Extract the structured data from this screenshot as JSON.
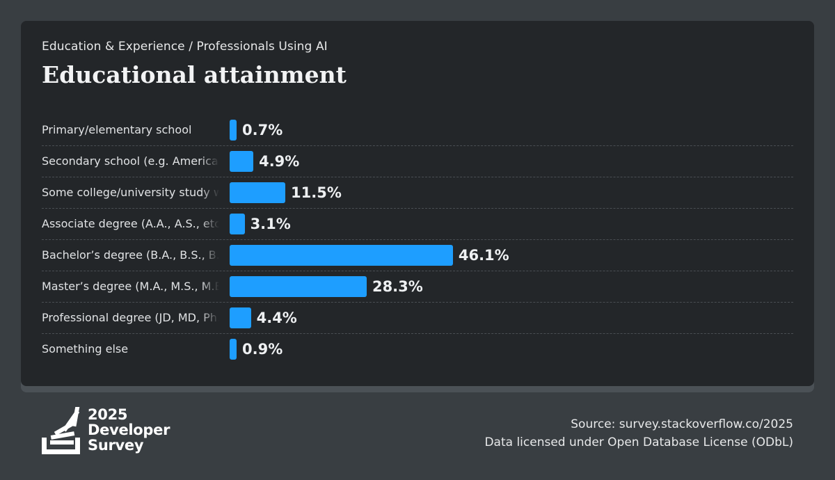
{
  "header": {
    "breadcrumb": "Education & Experience / Professionals Using AI",
    "title": "Educational attainment"
  },
  "chart_data": {
    "type": "bar",
    "orientation": "horizontal",
    "title": "Educational attainment",
    "categories": [
      "Primary/elementary school",
      "Secondary school (e.g. American high school, German Realschule or Gymnasium, etc.)",
      "Some college/university study without earning a degree",
      "Associate degree (A.A., A.S., etc.)",
      "Bachelor’s degree (B.A., B.S., B.Eng., etc.)",
      "Master’s degree (M.A., M.S., M.Eng., MBA, etc.)",
      "Professional degree (JD, MD, Ph.D, Ed.D, etc.)",
      "Something else"
    ],
    "values": [
      0.7,
      4.9,
      11.5,
      3.1,
      46.1,
      28.3,
      4.4,
      0.9
    ],
    "value_labels": [
      "0.7%",
      "4.9%",
      "11.5%",
      "3.1%",
      "46.1%",
      "28.3%",
      "4.4%",
      "0.9%"
    ],
    "xlim": [
      0,
      100
    ],
    "bar_color": "#1e9eff"
  },
  "branding": {
    "year": "2025",
    "line2": "Developer",
    "line3": "Survey"
  },
  "footer": {
    "source": "Source: survey.stackoverflow.co/2025",
    "license": "Data licensed under Open Database License (ODbL)"
  },
  "colors": {
    "background": "#393e42",
    "card": "#232629",
    "accent": "#1e9eff"
  }
}
